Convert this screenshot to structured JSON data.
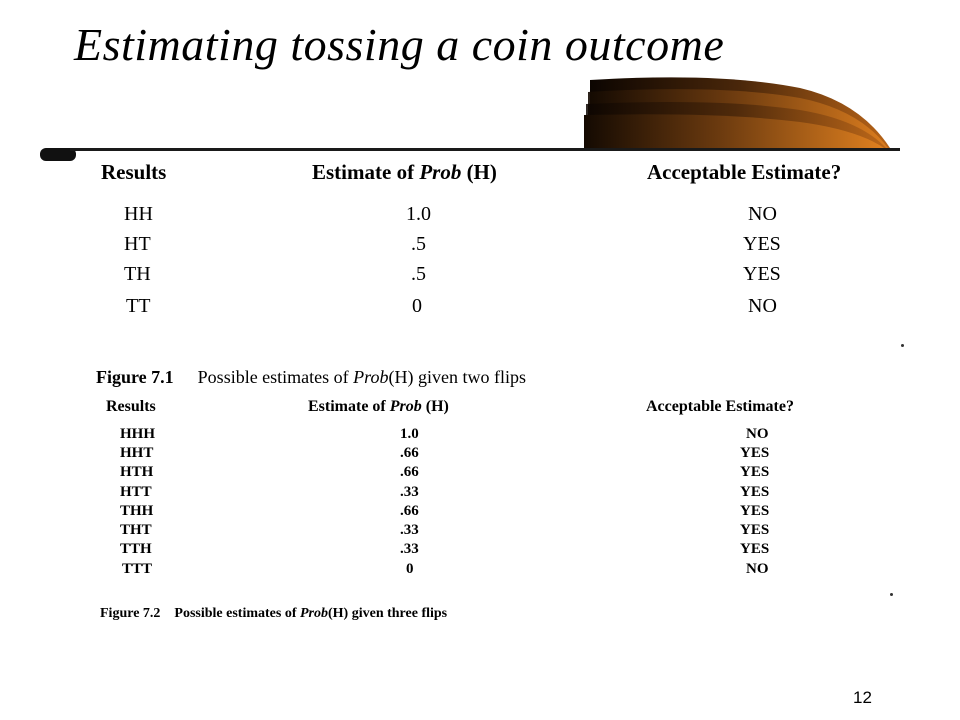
{
  "title": "Estimating tossing a coin outcome",
  "table1": {
    "headers": [
      "Results",
      "Estimate of Prob (H)",
      "Acceptable Estimate?"
    ],
    "header_prefix": "Estimate of ",
    "header_italic": "Prob",
    "header_suffix": " (H)",
    "rows": [
      {
        "result": "HH",
        "estimate": "1.0",
        "acceptable": "NO"
      },
      {
        "result": "HT",
        "estimate": ".5",
        "acceptable": "YES"
      },
      {
        "result": "TH",
        "estimate": ".5",
        "acceptable": "YES"
      },
      {
        "result": "TT",
        "estimate": "0",
        "acceptable": "NO"
      }
    ]
  },
  "caption1": {
    "label": "Figure 7.1",
    "text_prefix": "Possible estimates of ",
    "text_italic": "Prob",
    "text_suffix": "(H) given two flips"
  },
  "table2": {
    "headers": [
      "Results",
      "Estimate of Prob (H)",
      "Acceptable Estimate?"
    ],
    "header_prefix": "Estimate of ",
    "header_italic": "Prob",
    "header_suffix": " (H)",
    "rows": [
      {
        "result": "HHH",
        "estimate": "1.0",
        "acceptable": "NO"
      },
      {
        "result": "HHT",
        "estimate": ".66",
        "acceptable": "YES"
      },
      {
        "result": "HTH",
        "estimate": ".66",
        "acceptable": "YES"
      },
      {
        "result": "HTT",
        "estimate": ".33",
        "acceptable": "YES"
      },
      {
        "result": "THH",
        "estimate": ".66",
        "acceptable": "YES"
      },
      {
        "result": "THT",
        "estimate": ".33",
        "acceptable": "YES"
      },
      {
        "result": "TTH",
        "estimate": ".33",
        "acceptable": "YES"
      },
      {
        "result": "TTT",
        "estimate": "0",
        "acceptable": "NO"
      }
    ]
  },
  "caption2": {
    "label": "Figure 7.2",
    "text_prefix": "Possible estimates of ",
    "text_italic": "Prob",
    "text_suffix": "(H) given three flips"
  },
  "page_number": "12",
  "colors": {
    "swoosh_dark": "#2a1505",
    "swoosh_orange": "#d87a1e",
    "divider": "#1a1a1a"
  }
}
